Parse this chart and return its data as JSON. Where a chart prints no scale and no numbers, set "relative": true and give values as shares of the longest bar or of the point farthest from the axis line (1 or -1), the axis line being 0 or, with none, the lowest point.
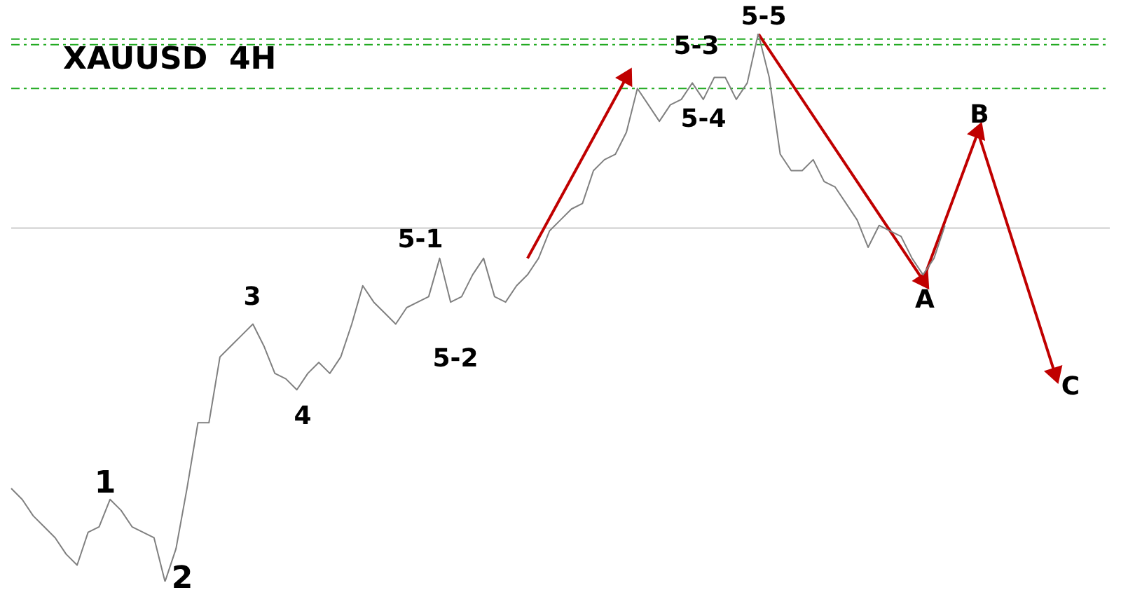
{
  "chart_data": {
    "type": "line",
    "relative": true,
    "title": "XAUUSD  4H",
    "marker": "none",
    "line_style": "solid",
    "categories": [
      null,
      null,
      null,
      null,
      null,
      null,
      null,
      null,
      null,
      null,
      null,
      null,
      null,
      null,
      null,
      null,
      null,
      null,
      null,
      null,
      null,
      null,
      null,
      null,
      null,
      null,
      null,
      null,
      null,
      null,
      null,
      null,
      null,
      null,
      null,
      null,
      null,
      null,
      null,
      null,
      null,
      null,
      null,
      null,
      null,
      null,
      null,
      null,
      null,
      null,
      null,
      null,
      null,
      null,
      null,
      null,
      null,
      null,
      null,
      null,
      null,
      null,
      null,
      null,
      null,
      null,
      null,
      null,
      null,
      null,
      null,
      null,
      null,
      null,
      null,
      null,
      null,
      null,
      null,
      null,
      null,
      null,
      null,
      null,
      null,
      null,
      null,
      null,
      null,
      null,
      null,
      null,
      null,
      null,
      null,
      null,
      null,
      null,
      null,
      null,
      null
    ],
    "series": [
      {
        "color": "#808080",
        "values": [
          0.17,
          0.15,
          0.12,
          0.1,
          0.08,
          0.05,
          0.03,
          0.09,
          0.1,
          0.15,
          0.13,
          0.1,
          0.09,
          0.08,
          0,
          0.06,
          0.17,
          0.29,
          0.29,
          0.41,
          0.43,
          0.45,
          0.47,
          0.43,
          0.38,
          0.37,
          0.35,
          0.38,
          0.4,
          0.38,
          0.41,
          0.47,
          0.54,
          0.51,
          0.49,
          0.47,
          0.5,
          0.51,
          0.52,
          0.59,
          0.51,
          0.52,
          0.56,
          0.59,
          0.52,
          0.51,
          0.54,
          0.56,
          0.59,
          0.64,
          0.66,
          0.68,
          0.69,
          0.75,
          0.77,
          0.78,
          0.82,
          0.9,
          0.87,
          0.84,
          0.87,
          0.88,
          0.91,
          0.88,
          0.92,
          0.92,
          0.88,
          0.91,
          1,
          0.92,
          0.78,
          0.75,
          0.75,
          0.77,
          0.73,
          0.72,
          0.69,
          0.66,
          0.61,
          0.65,
          0.64,
          0.63,
          0.59,
          0.56,
          0.59,
          0.65,
          null,
          null,
          null,
          null,
          null,
          null,
          null,
          null,
          null,
          null,
          null,
          null,
          null,
          null,
          null
        ]
      },
      {
        "color": "#c00000",
        "marker": "triangle",
        "values": [
          null,
          null,
          null,
          null,
          null,
          null,
          null,
          null,
          null,
          null,
          null,
          null,
          null,
          null,
          null,
          null,
          null,
          null,
          null,
          null,
          null,
          null,
          null,
          null,
          null,
          null,
          null,
          null,
          null,
          null,
          null,
          null,
          null,
          null,
          null,
          null,
          null,
          null,
          null,
          null,
          null,
          null,
          null,
          null,
          null,
          null,
          null,
          0.59,
          null,
          null,
          null,
          null,
          null,
          null,
          null,
          null,
          0.92,
          null,
          null,
          null,
          null,
          null,
          null,
          null,
          null,
          null,
          null,
          null,
          null,
          null,
          null,
          null,
          null,
          null,
          null,
          null,
          null,
          null,
          null,
          null,
          null,
          null,
          null,
          null,
          null,
          null,
          null,
          null,
          null,
          null,
          null,
          null,
          null,
          null,
          null,
          null,
          null,
          null,
          null,
          null,
          null
        ]
      },
      {
        "color": "#c00000",
        "marker": "triangle",
        "values": [
          null,
          null,
          null,
          null,
          null,
          null,
          null,
          null,
          null,
          null,
          null,
          null,
          null,
          null,
          null,
          null,
          null,
          null,
          null,
          null,
          null,
          null,
          null,
          null,
          null,
          null,
          null,
          null,
          null,
          null,
          null,
          null,
          null,
          null,
          null,
          null,
          null,
          null,
          null,
          null,
          null,
          null,
          null,
          null,
          null,
          null,
          null,
          null,
          null,
          null,
          null,
          null,
          null,
          null,
          null,
          null,
          null,
          null,
          null,
          null,
          null,
          null,
          null,
          null,
          null,
          null,
          null,
          null,
          1,
          null,
          null,
          null,
          null,
          null,
          null,
          null,
          null,
          null,
          null,
          null,
          null,
          null,
          null,
          0.55,
          null,
          null,
          null,
          null,
          0.82,
          null,
          null,
          null,
          null,
          null,
          null,
          0.38,
          null,
          null,
          null,
          null,
          null
        ]
      }
    ],
    "ref_lines": [
      {
        "axis": "y",
        "value": 0.99,
        "color": "#22aa22",
        "line_style": "dashed"
      },
      {
        "axis": "y",
        "value": 0.98,
        "color": "#22aa22",
        "line_style": "dashed"
      },
      {
        "axis": "y",
        "value": 0.9,
        "color": "#22aa22",
        "line_style": "dashed"
      },
      {
        "axis": "y",
        "value": 0.645,
        "color": "#cccccc",
        "line_style": "solid"
      }
    ],
    "annotations": [
      "1",
      "2",
      "3",
      "4",
      "5-1",
      "5-2",
      "5-3",
      "5-4",
      "5-5",
      "A",
      "B",
      "C"
    ]
  }
}
